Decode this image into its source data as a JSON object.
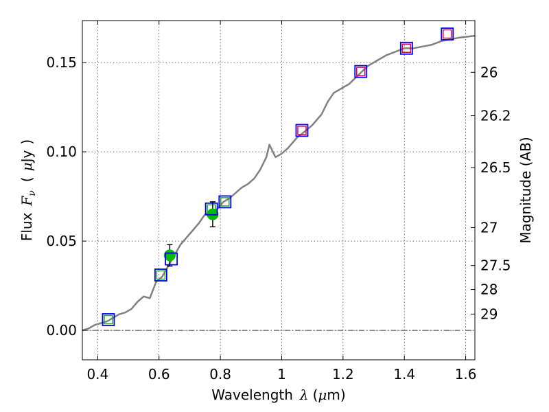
{
  "chart_data": {
    "type": "scatter",
    "xlabel": "Wavelength",
    "xlabel_symbol": "λ",
    "xlabel_unit_prefix": "(",
    "xlabel_unit_mu": "μ",
    "xlabel_unit_suffix": "m)",
    "ylabel": "Flux",
    "ylabel_symbol": "F",
    "ylabel_symbol_sub": "ν",
    "ylabel_unit_open": "(",
    "ylabel_unit_mu": "μ",
    "ylabel_unit": "Jy",
    "ylabel_unit_close": ")",
    "y2label": "Magnitude (AB)",
    "xlim": [
      0.35,
      1.63
    ],
    "ylim": [
      -0.0165,
      0.1735
    ],
    "xticks": [
      "0.4",
      "0.6",
      "0.8",
      "1",
      "1.2",
      "1.4",
      "1.6"
    ],
    "xtick_values": [
      0.4,
      0.6,
      0.8,
      1.0,
      1.2,
      1.4,
      1.6
    ],
    "yticks": [
      "0.00",
      "0.05",
      "0.10",
      "0.15"
    ],
    "ytick_values": [
      0.0,
      0.05,
      0.1,
      0.15
    ],
    "y2ticks": [
      "26",
      "26.2",
      "26.5",
      "27",
      "27.5",
      "28",
      "29"
    ],
    "y2tick_values": [
      26,
      26.2,
      26.5,
      27,
      27.5,
      28,
      29
    ],
    "grid": true,
    "zero_line": true,
    "colors": {
      "model_line": "#808080",
      "observed": "#00bb00",
      "model_box": "#0000ee",
      "synth_optical": "#22aa22",
      "synth_ir": "#ee0044",
      "errorbar": "#000000"
    },
    "model_spectrum": [
      [
        0.35,
        0.0
      ],
      [
        0.37,
        0.001
      ],
      [
        0.39,
        0.003
      ],
      [
        0.41,
        0.004
      ],
      [
        0.43,
        0.005
      ],
      [
        0.45,
        0.007
      ],
      [
        0.47,
        0.009
      ],
      [
        0.49,
        0.01
      ],
      [
        0.51,
        0.012
      ],
      [
        0.53,
        0.016
      ],
      [
        0.55,
        0.019
      ],
      [
        0.57,
        0.018
      ],
      [
        0.59,
        0.027
      ],
      [
        0.61,
        0.03
      ],
      [
        0.63,
        0.036
      ],
      [
        0.65,
        0.042
      ],
      [
        0.67,
        0.048
      ],
      [
        0.69,
        0.052
      ],
      [
        0.71,
        0.056
      ],
      [
        0.73,
        0.06
      ],
      [
        0.75,
        0.065
      ],
      [
        0.77,
        0.066
      ],
      [
        0.79,
        0.068
      ],
      [
        0.81,
        0.072
      ],
      [
        0.83,
        0.074
      ],
      [
        0.85,
        0.077
      ],
      [
        0.87,
        0.08
      ],
      [
        0.89,
        0.082
      ],
      [
        0.91,
        0.085
      ],
      [
        0.93,
        0.09
      ],
      [
        0.95,
        0.097
      ],
      [
        0.96,
        0.104
      ],
      [
        0.98,
        0.097
      ],
      [
        1.0,
        0.099
      ],
      [
        1.02,
        0.102
      ],
      [
        1.05,
        0.108
      ],
      [
        1.08,
        0.112
      ],
      [
        1.1,
        0.115
      ],
      [
        1.13,
        0.121
      ],
      [
        1.15,
        0.128
      ],
      [
        1.17,
        0.133
      ],
      [
        1.2,
        0.136
      ],
      [
        1.22,
        0.138
      ],
      [
        1.25,
        0.143
      ],
      [
        1.28,
        0.148
      ],
      [
        1.31,
        0.151
      ],
      [
        1.34,
        0.154
      ],
      [
        1.37,
        0.156
      ],
      [
        1.4,
        0.158
      ],
      [
        1.43,
        0.158
      ],
      [
        1.46,
        0.159
      ],
      [
        1.49,
        0.16
      ],
      [
        1.52,
        0.162
      ],
      [
        1.55,
        0.163
      ],
      [
        1.58,
        0.164
      ],
      [
        1.63,
        0.165
      ]
    ],
    "observed_points": [
      {
        "x": 0.635,
        "y": 0.042,
        "yerr": 0.006
      },
      {
        "x": 0.775,
        "y": 0.065,
        "yerr": 0.007
      }
    ],
    "model_boxes": [
      {
        "x": 0.435,
        "y": 0.006
      },
      {
        "x": 0.606,
        "y": 0.031
      },
      {
        "x": 0.64,
        "y": 0.04
      },
      {
        "x": 0.771,
        "y": 0.068
      },
      {
        "x": 0.815,
        "y": 0.072
      },
      {
        "x": 1.066,
        "y": 0.112
      },
      {
        "x": 1.258,
        "y": 0.145
      },
      {
        "x": 1.407,
        "y": 0.158
      },
      {
        "x": 1.54,
        "y": 0.166
      }
    ],
    "synth_optical": [
      {
        "x": 0.435,
        "y": 0.006
      },
      {
        "x": 0.606,
        "y": 0.031
      },
      {
        "x": 0.771,
        "y": 0.068
      },
      {
        "x": 0.815,
        "y": 0.072
      }
    ],
    "synth_ir": [
      {
        "x": 1.066,
        "y": 0.112
      },
      {
        "x": 1.258,
        "y": 0.145
      },
      {
        "x": 1.407,
        "y": 0.158
      },
      {
        "x": 1.54,
        "y": 0.166
      }
    ]
  }
}
